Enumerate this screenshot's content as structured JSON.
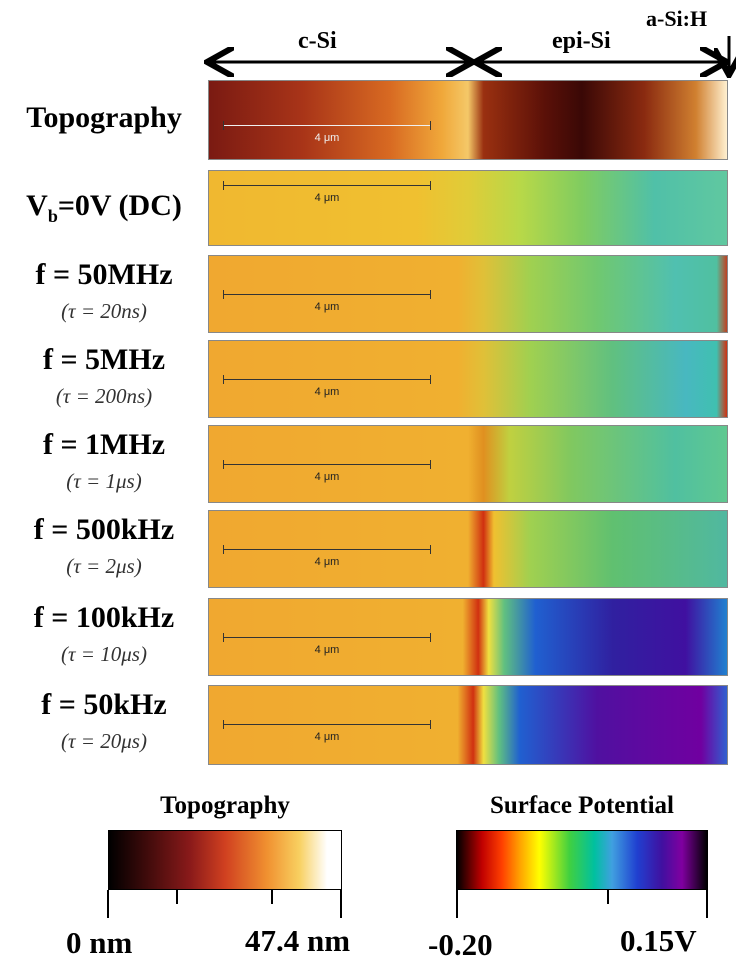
{
  "header": {
    "c_si": "c-Si",
    "epi_si": "epi-Si",
    "a_si_h": "a-Si:H"
  },
  "rows": [
    {
      "label": "Topography",
      "scale_bar": "4 μm"
    },
    {
      "label_main": "V",
      "label_sub": "b",
      "label_rest": "=0V (DC)",
      "scale_bar": "4 μm"
    },
    {
      "label": "f = 50MHz",
      "sublabel": "(τ = 20ns)",
      "scale_bar": "4 μm"
    },
    {
      "label": "f = 5MHz",
      "sublabel": "(τ = 200ns)",
      "scale_bar": "4 μm"
    },
    {
      "label": "f = 1MHz",
      "sublabel": "(τ = 1μs)",
      "scale_bar": "4 μm"
    },
    {
      "label": "f = 500kHz",
      "sublabel": "(τ = 2μs)",
      "scale_bar": "4 μm"
    },
    {
      "label": "f = 100kHz",
      "sublabel": "(τ = 10μs)",
      "scale_bar": "4 μm"
    },
    {
      "label": "f = 50kHz",
      "sublabel": "(τ = 20μs)",
      "scale_bar": "4 μm"
    }
  ],
  "colorbars": [
    {
      "title": "Topography",
      "min_label": "0 nm",
      "max_label": "47.4 nm"
    },
    {
      "title": "Surface Potential",
      "min_label": "-0.20",
      "max_label": "0.15V"
    }
  ]
}
